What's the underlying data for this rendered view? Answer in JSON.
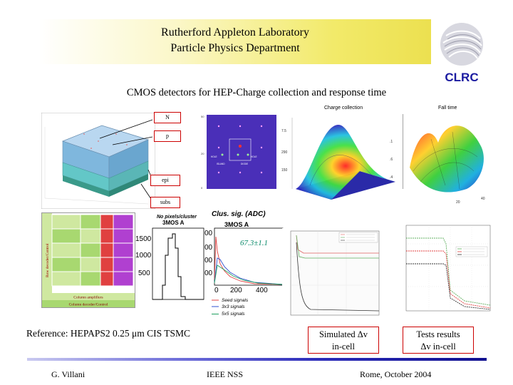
{
  "header": {
    "line1": "Rutherford Appleton Laboratory",
    "line2": "Particle Physics Department",
    "logo_text": "CLRC"
  },
  "subtitle": "CMOS detectors for HEP-Charge collection and response time",
  "device_labels": {
    "n": "N",
    "p": "p",
    "epi": "epi",
    "subs": "subs"
  },
  "plots": {
    "charge_title": "Charge collection",
    "fall_title": "Fall time",
    "clus_title": "Clus. sig. (ADC)",
    "clus_sub1": "No pixels/cluster",
    "clus_sub2": "3MOS A",
    "clus_sub3": "3MOS A",
    "clus_value": "67.3±1.1",
    "legend_seed": "Seed signals",
    "legend_3x3": "3x3 signals",
    "legend_5x5": "5x5 signals",
    "hist_y": [
      "1500",
      "1000",
      "500"
    ],
    "curve_y": [
      "00",
      "00",
      "00",
      "00",
      "0"
    ],
    "curve_x": [
      "0",
      "200",
      "400"
    ],
    "chip_side": "Row decoder/Control",
    "chip_bottom1": "Column amplifiers",
    "chip_bottom2": "Column decoder/Control"
  },
  "reference": "Reference: HEPAPS2 0.25 μm CIS TSMC",
  "sim_box": {
    "line1": "Simulated Δv",
    "line2": "in-cell"
  },
  "tests_box": {
    "line1": "Tests results",
    "line2": "Δv in-cell"
  },
  "footer": {
    "author": "G. Villani",
    "event": "IEEE NSS",
    "place_date": "Rome, October 2004"
  }
}
